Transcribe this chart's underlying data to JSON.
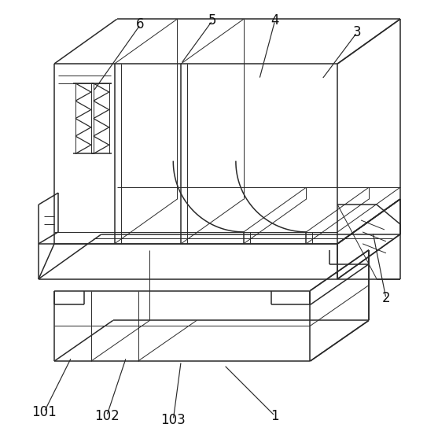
{
  "background_color": "#ffffff",
  "line_color": "#2a2a2a",
  "lw": 1.1,
  "tlw": 0.7,
  "fig_width": 5.57,
  "fig_height": 5.53,
  "dpi": 100
}
